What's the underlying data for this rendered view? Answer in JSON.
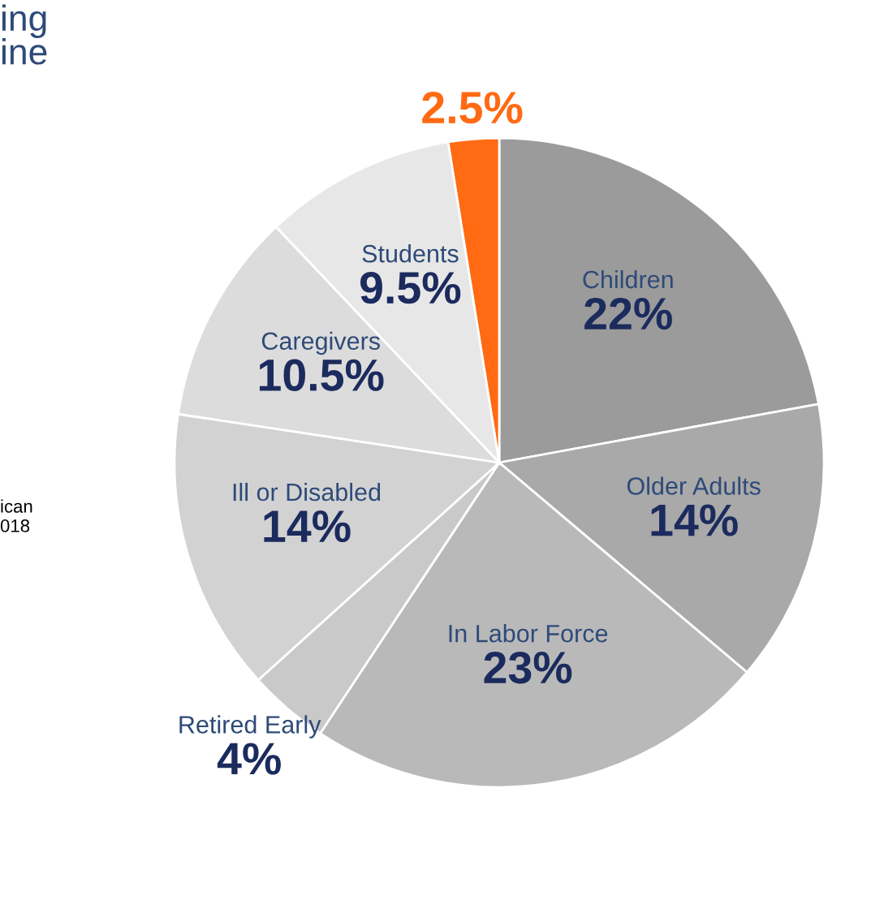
{
  "chart_data": {
    "type": "pie",
    "title": "ing\nine",
    "categories": [
      "Children",
      "Older Adults",
      "In Labor Force",
      "Retired Early",
      "Ill or Disabled",
      "Caregivers",
      "Students",
      null
    ],
    "values": [
      22,
      14,
      23,
      4,
      14,
      10.5,
      9.5,
      2.5
    ],
    "value_labels": [
      "22%",
      "14%",
      "23%",
      "4%",
      "14%",
      "10.5%",
      "9.5%",
      "2.5%"
    ],
    "colors": [
      "#9b9b9b",
      "#a9a9a9",
      "#b9b9b9",
      "#c9c9c9",
      "#d2d2d2",
      "#dcdcdc",
      "#e7e7e7",
      "#ff6a13"
    ],
    "annotations": [
      "ican\n018"
    ],
    "legend": false
  }
}
